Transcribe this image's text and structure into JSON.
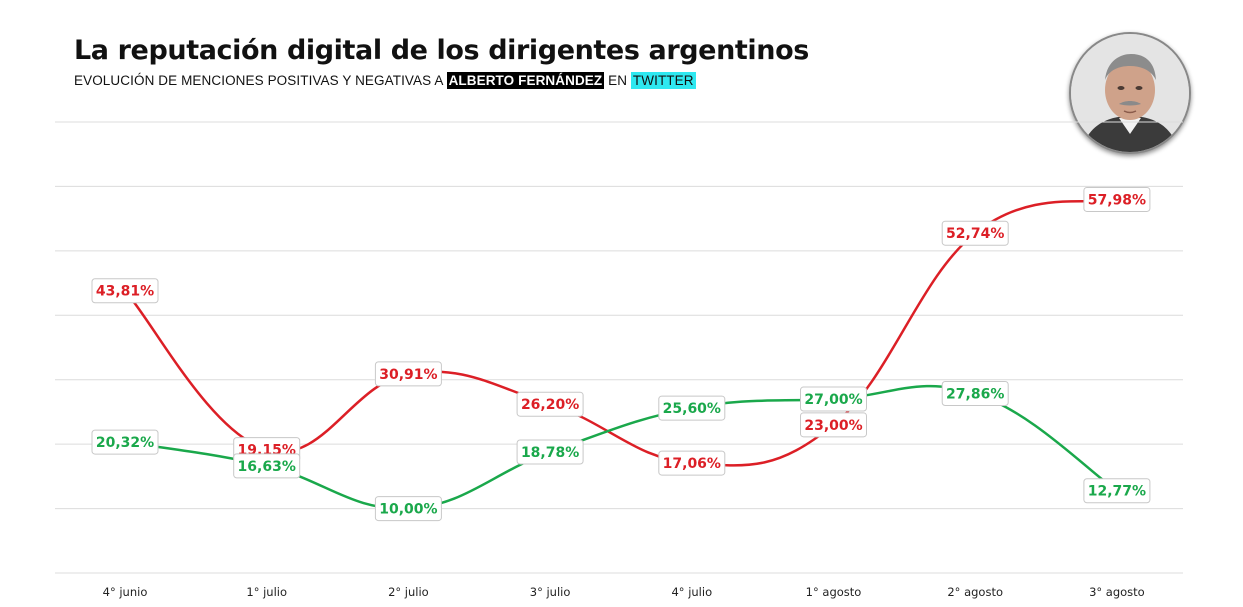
{
  "header": {
    "title": "La reputación digital de los dirigentes argentinos",
    "subtitle_prefix": "EVOLUCIÓN DE MENCIONES POSITIVAS Y NEGATIVAS A ",
    "subtitle_name": "ALBERTO FERNÁNDEZ",
    "subtitle_mid": " EN ",
    "subtitle_platform": "TWITTER"
  },
  "colors": {
    "negative": "#dc1f26",
    "positive": "#1aa84b",
    "grid": "#dcdcdc",
    "highlight_dark": "#000000",
    "highlight_cyan": "#2ee8f0"
  },
  "chart_data": {
    "type": "line",
    "categories": [
      "4° junio",
      "1° julio",
      "2° julio",
      "3° julio",
      "4° julio",
      "1° agosto",
      "2° agosto",
      "3° agosto"
    ],
    "series": [
      {
        "color": "#dc1f26",
        "values": [
          43.81,
          19.15,
          30.91,
          26.2,
          17.06,
          23.0,
          52.74,
          57.98
        ],
        "labels": [
          "43,81%",
          "19,15%",
          "30,91%",
          "26,20%",
          "17,06%",
          "23,00%",
          "52,74%",
          "57,98%"
        ]
      },
      {
        "color": "#1aa84b",
        "values": [
          20.32,
          16.63,
          10.0,
          18.78,
          25.6,
          27.0,
          27.86,
          12.77
        ],
        "labels": [
          "20,32%",
          "16,63%",
          "10,00%",
          "18,78%",
          "25,60%",
          "27,00%",
          "27,86%",
          "12,77%"
        ]
      }
    ],
    "ylim": [
      0,
      70
    ],
    "grid": true,
    "legend": "none",
    "line_style": "smooth"
  }
}
